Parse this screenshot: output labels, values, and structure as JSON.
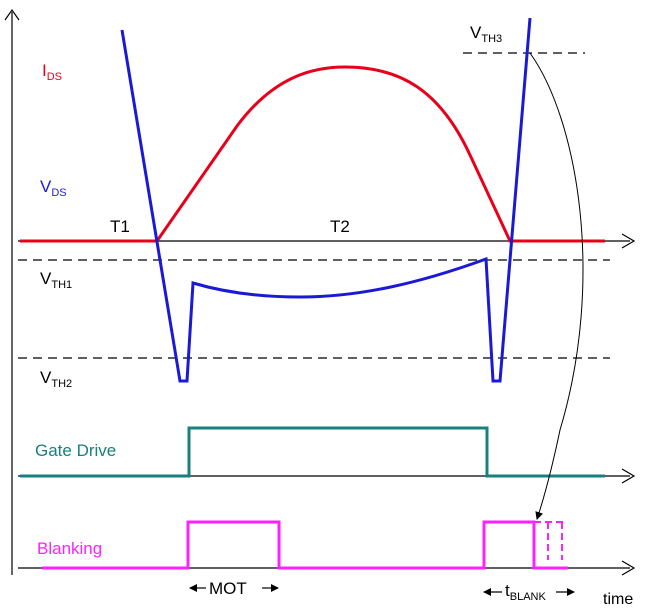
{
  "colors": {
    "ids": "#e8001b",
    "vds": "#1a1ad6",
    "gate": "#1a7f7f",
    "blank": "#ff22ff",
    "axis": "#000000"
  },
  "labels": {
    "ids_main": "I",
    "ids_sub": "DS",
    "vds_main": "V",
    "vds_sub": "DS",
    "t1": "T1",
    "t2": "T2",
    "vth1_main": "V",
    "vth1_sub": "TH1",
    "vth2_main": "V",
    "vth2_sub": "TH2",
    "vth3_main": "V",
    "vth3_sub": "TH3",
    "gate_drive": "Gate Drive",
    "blanking": "Blanking",
    "mot": "MOT",
    "tblank_main": "t",
    "tblank_sub": "BLANK",
    "time": "time"
  }
}
